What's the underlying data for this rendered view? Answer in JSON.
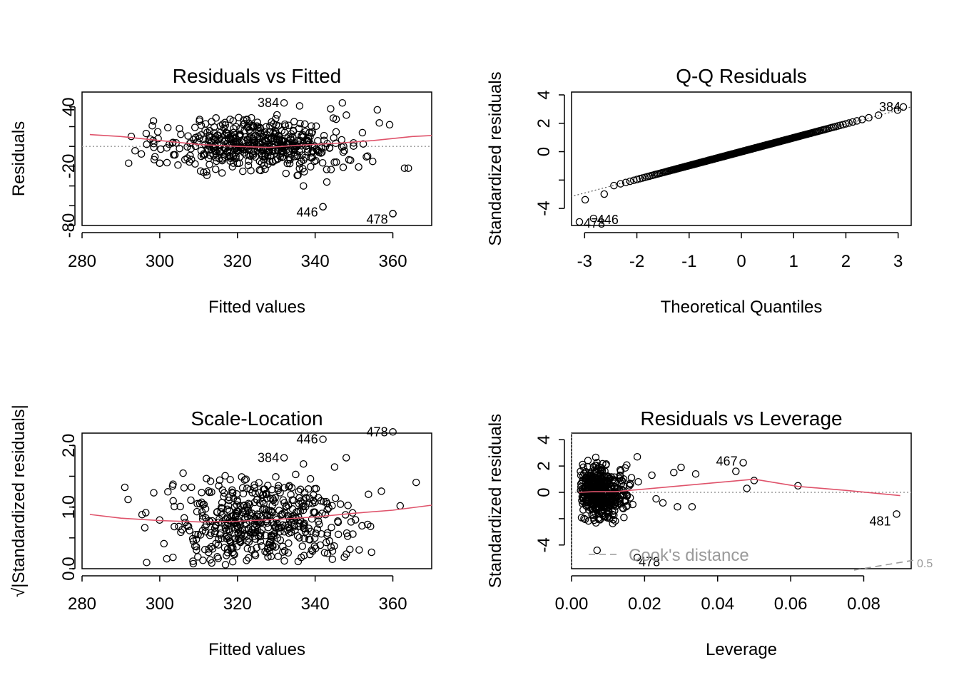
{
  "chart_data": [
    {
      "type": "scatter",
      "title": "Residuals vs Fitted",
      "xlabel": "Fitted values",
      "ylabel": "Residuals",
      "xlim": [
        280,
        370
      ],
      "ylim": [
        -80,
        55
      ],
      "xticks": [
        "280",
        "300",
        "320",
        "340",
        "360"
      ],
      "xtick_values": [
        280,
        300,
        320,
        340,
        360
      ],
      "yticks": [
        "-80",
        "-20",
        "40"
      ],
      "ytick_values": [
        -80,
        -20,
        40
      ],
      "yminor": [
        -80,
        -60,
        -40,
        -20,
        0,
        20,
        40
      ],
      "reference_y": 0,
      "smoother": [
        [
          282,
          12
        ],
        [
          290,
          10
        ],
        [
          300,
          6
        ],
        [
          310,
          2
        ],
        [
          320,
          0
        ],
        [
          328,
          -1
        ],
        [
          335,
          1
        ],
        [
          345,
          3
        ],
        [
          355,
          6
        ],
        [
          365,
          10
        ],
        [
          370,
          11
        ]
      ],
      "labeled_points": [
        {
          "label": "384",
          "x": 332,
          "y": 44
        },
        {
          "label": "446",
          "x": 342,
          "y": -61
        },
        {
          "label": "478",
          "x": 360,
          "y": -68
        }
      ],
      "extra_points": [
        [
          336,
          41
        ],
        [
          342,
          -61
        ],
        [
          360,
          -68
        ],
        [
          337,
          -40
        ],
        [
          343,
          -36
        ],
        [
          363,
          -22
        ],
        [
          364,
          -22
        ],
        [
          300,
          -17
        ],
        [
          292,
          -17
        ],
        [
          347,
          44
        ],
        [
          356,
          37
        ],
        [
          344,
          38
        ]
      ]
    },
    {
      "type": "scatter",
      "title": "Q-Q Residuals",
      "xlabel": "Theoretical Quantiles",
      "ylabel": "Standardized residuals",
      "xlim": [
        -3.25,
        3.25
      ],
      "ylim": [
        -5.2,
        4.2
      ],
      "xticks": [
        "-3",
        "-2",
        "-1",
        "0",
        "1",
        "2",
        "3"
      ],
      "xtick_values": [
        -3,
        -2,
        -1,
        0,
        1,
        2,
        3
      ],
      "yticks": [
        "-4",
        "0",
        "2",
        "4"
      ],
      "ytick_values": [
        -4,
        0,
        2,
        4
      ],
      "yminor": [
        -4,
        -2,
        0,
        2,
        4
      ],
      "reference_line": [
        [
          -3.4,
          -3.3
        ],
        [
          3.4,
          3.3
        ]
      ],
      "labeled_points": [
        {
          "label": "478",
          "x": -3.1,
          "y": -4.95
        },
        {
          "label": "446",
          "x": -2.83,
          "y": -4.7
        },
        {
          "label": "384",
          "x": 3.1,
          "y": 3.15
        }
      ]
    },
    {
      "type": "scatter",
      "title": "Scale-Location",
      "xlabel": "Fitted values",
      "ylabel": "√|Standardized residuals|",
      "xlim": [
        280,
        370
      ],
      "ylim": [
        0,
        2.2
      ],
      "xticks": [
        "280",
        "300",
        "320",
        "340",
        "360"
      ],
      "xtick_values": [
        280,
        300,
        320,
        340,
        360
      ],
      "yticks": [
        "0.0",
        "1.0",
        "2.0"
      ],
      "ytick_values": [
        0.0,
        1.0,
        2.0
      ],
      "yminor": [
        0.0,
        0.5,
        1.0,
        1.5,
        2.0
      ],
      "smoother": [
        [
          282,
          0.88
        ],
        [
          290,
          0.82
        ],
        [
          300,
          0.78
        ],
        [
          310,
          0.76
        ],
        [
          320,
          0.77
        ],
        [
          330,
          0.8
        ],
        [
          340,
          0.84
        ],
        [
          350,
          0.9
        ],
        [
          360,
          0.95
        ],
        [
          370,
          1.03
        ]
      ],
      "labeled_points": [
        {
          "label": "446",
          "x": 342,
          "y": 2.1
        },
        {
          "label": "478",
          "x": 360,
          "y": 2.22
        },
        {
          "label": "384",
          "x": 332,
          "y": 1.8
        }
      ],
      "extra_points": [
        [
          345,
          1.65
        ],
        [
          348,
          1.8
        ],
        [
          337,
          1.7
        ],
        [
          366,
          1.4
        ],
        [
          335,
          1.53
        ],
        [
          291,
          1.32
        ],
        [
          306,
          1.55
        ]
      ]
    },
    {
      "type": "scatter",
      "title": "Residuals vs Leverage",
      "xlabel": "Leverage",
      "ylabel": "Standardized residuals",
      "xlim": [
        0.0,
        0.093
      ],
      "ylim": [
        -5.8,
        4.5
      ],
      "xticks": [
        "0.00",
        "0.02",
        "0.04",
        "0.06",
        "0.08"
      ],
      "xtick_values": [
        0.0,
        0.02,
        0.04,
        0.06,
        0.08
      ],
      "yticks": [
        "-4",
        "0",
        "2",
        "4"
      ],
      "ytick_values": [
        -4,
        0,
        2,
        4
      ],
      "yminor": [
        -4,
        -2,
        0,
        2,
        4
      ],
      "reference_y": 0,
      "reference_x": 0,
      "smoother": [
        [
          0.002,
          0.0
        ],
        [
          0.006,
          0.05
        ],
        [
          0.012,
          0.05
        ],
        [
          0.02,
          0.25
        ],
        [
          0.03,
          0.5
        ],
        [
          0.04,
          0.75
        ],
        [
          0.05,
          1.0
        ],
        [
          0.062,
          0.45
        ],
        [
          0.075,
          0.15
        ],
        [
          0.09,
          -0.25
        ]
      ],
      "labeled_points": [
        {
          "label": "467",
          "x": 0.047,
          "y": 2.25
        },
        {
          "label": "481",
          "x": 0.089,
          "y": -1.65
        },
        {
          "label": "478",
          "x": 0.018,
          "y": -4.95
        }
      ],
      "extra_points": [
        [
          0.05,
          0.9
        ],
        [
          0.062,
          0.5
        ],
        [
          0.048,
          0.3
        ],
        [
          0.033,
          -1.1
        ],
        [
          0.029,
          -1.1
        ],
        [
          0.025,
          -0.8
        ],
        [
          0.034,
          1.4
        ],
        [
          0.028,
          1.5
        ],
        [
          0.018,
          2.7
        ],
        [
          0.007,
          -4.4
        ],
        [
          0.045,
          1.6
        ],
        [
          0.03,
          1.9
        ],
        [
          0.022,
          1.3
        ]
      ],
      "legend": "Cook's distance",
      "legend_position": "bottom-left",
      "cook_contour_label": "0.5"
    }
  ]
}
